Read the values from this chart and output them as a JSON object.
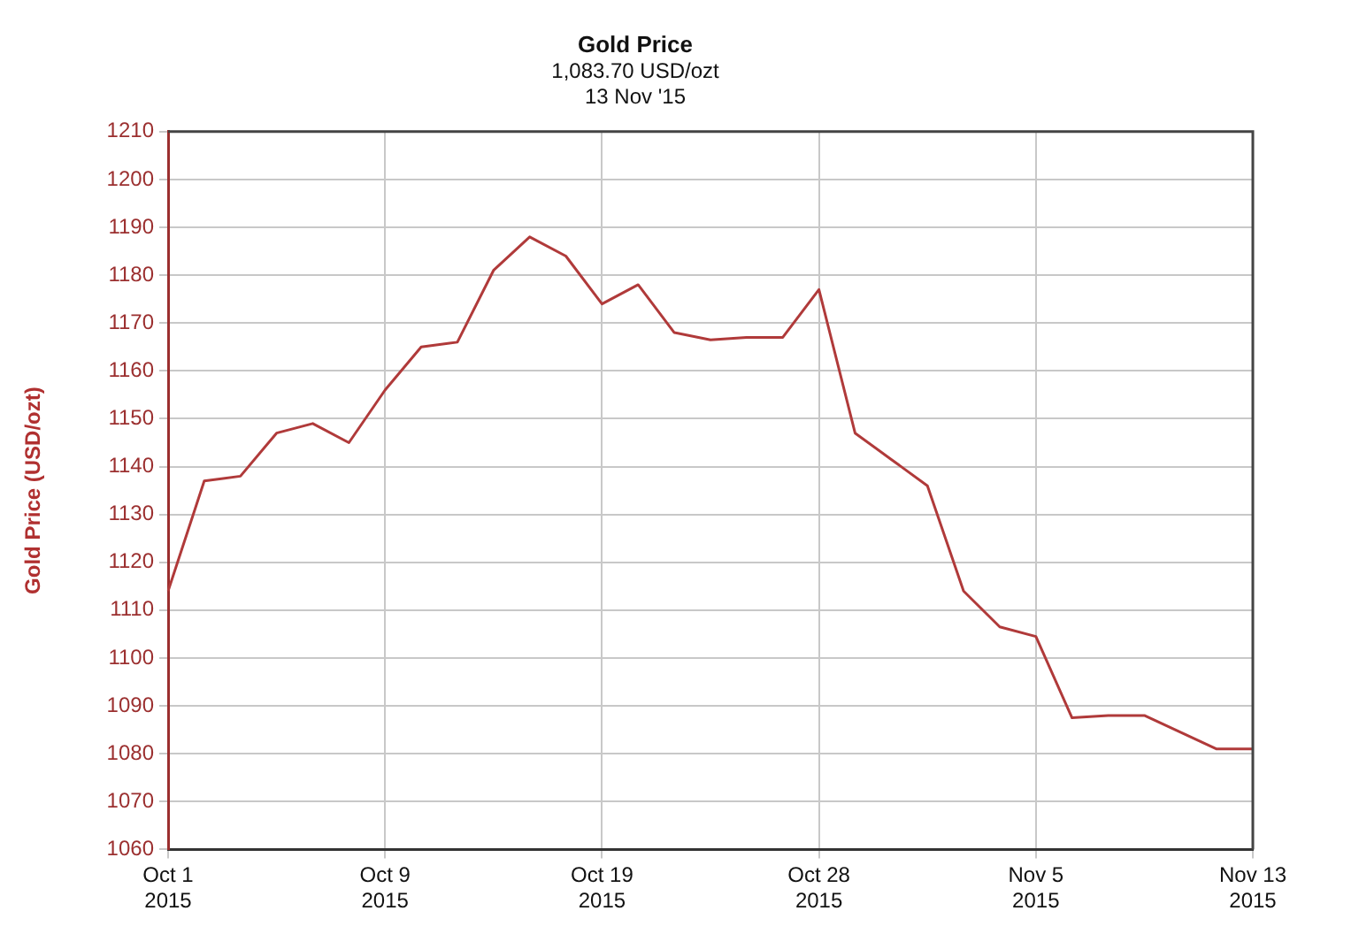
{
  "chart_data": {
    "type": "line",
    "title": "Gold Price",
    "subtitle": "1,083.70 USD/ozt\n13 Nov '15",
    "ylabel": "Gold Price (USD/ozt)",
    "categories": [
      "Oct 1\n2015",
      null,
      null,
      null,
      null,
      null,
      "Oct 9\n2015",
      null,
      null,
      null,
      null,
      null,
      "Oct 19\n2015",
      null,
      null,
      null,
      null,
      null,
      "Oct 28\n2015",
      null,
      null,
      null,
      null,
      null,
      "Nov 5\n2015",
      null,
      null,
      null,
      null,
      null,
      "Nov 13\n2015"
    ],
    "series": [
      {
        "color": "#b03a3a",
        "values": [
          1114,
          1137,
          1138,
          1147,
          1149,
          1145,
          1156,
          1165,
          1166,
          1181,
          1188,
          1184,
          1174,
          1178,
          1168,
          1166.5,
          1167,
          1167,
          1177,
          1147,
          1141.5,
          1136,
          1114,
          1106.5,
          1104.5,
          1087.5,
          1088,
          1088,
          1084.5,
          1081,
          1081
        ]
      }
    ],
    "ylim": [
      1060,
      1210
    ],
    "yticks": [
      1060,
      1070,
      1080,
      1090,
      1100,
      1110,
      1120,
      1130,
      1140,
      1150,
      1160,
      1170,
      1180,
      1190,
      1200,
      1210
    ],
    "grid": true,
    "legend": false,
    "marker": "none",
    "line_style": "solid"
  }
}
